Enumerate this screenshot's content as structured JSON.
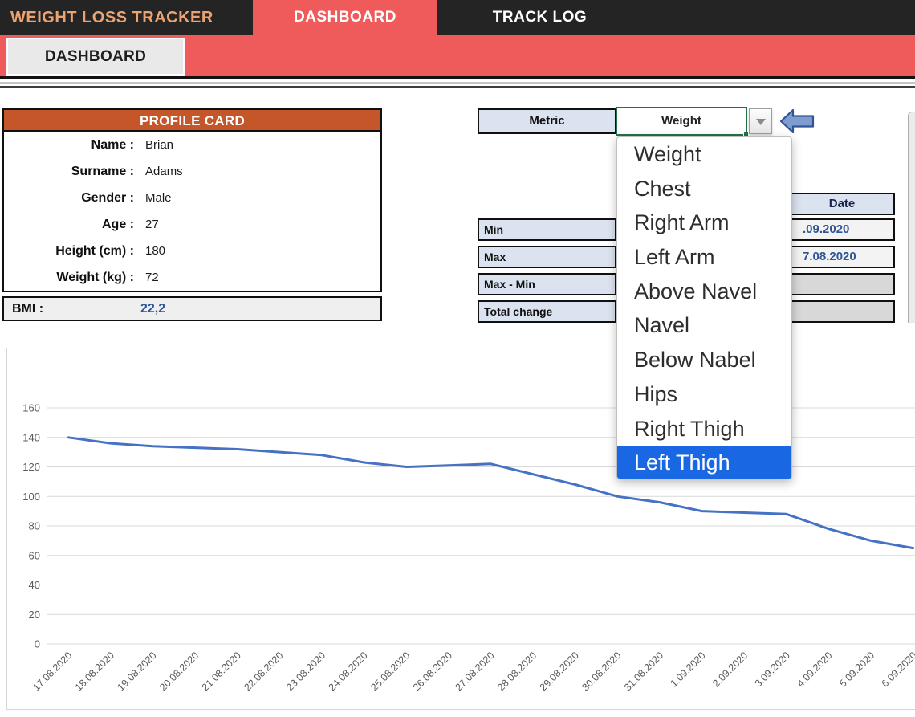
{
  "window": {
    "app_title": "WEIGHT LOSS TRACKER",
    "tabs": [
      {
        "label": "DASHBOARD",
        "active": true
      },
      {
        "label": "TRACK LOG",
        "active": false
      }
    ],
    "ribbon_button": "DASHBOARD"
  },
  "profile_card": {
    "title": "PROFILE CARD",
    "fields": [
      {
        "label": "Name :",
        "value": "Brian"
      },
      {
        "label": "Surname :",
        "value": "Adams"
      },
      {
        "label": "Gender :",
        "value": "Male"
      },
      {
        "label": "Age :",
        "value": "27"
      },
      {
        "label": "Height (cm) :",
        "value": "180"
      },
      {
        "label": "Weight (kg) :",
        "value": "72"
      }
    ],
    "bmi_label": "BMI :",
    "bmi_value": "22,2"
  },
  "metric_selector": {
    "label": "Metric",
    "selected": "Weight",
    "options": [
      "Weight",
      "Chest",
      "Right Arm",
      "Left Arm",
      "Above Navel",
      "Navel",
      "Below Nabel",
      "Hips",
      "Right Thigh",
      "Left Thigh"
    ],
    "highlighted_option": "Left Thigh"
  },
  "stats_table": {
    "date_header": "Date",
    "rows": [
      {
        "label": "Min",
        "date": ".09.2020"
      },
      {
        "label": "Max",
        "date": "7.08.2020"
      },
      {
        "label": "Max - Min",
        "date": ""
      },
      {
        "label": "Total change",
        "date": ""
      }
    ]
  },
  "colors": {
    "topbar_bg": "#242424",
    "accent_red": "#EF5B5B",
    "title_orange": "#EDA36F",
    "card_header_orange": "#C4562A",
    "cell_blue": "#DCE3F0",
    "value_blue": "#2F5597",
    "highlight_blue": "#1967E3",
    "chart_line_blue": "#4472C4",
    "selected_cell_green": "#217346",
    "empty_cell_gray": "#D8D8D8"
  },
  "chart_data": {
    "type": "line",
    "title": "",
    "xlabel": "",
    "ylabel": "",
    "categories": [
      "17.08.2020",
      "18.08.2020",
      "19.08.2020",
      "20.08.2020",
      "21.08.2020",
      "22.08.2020",
      "23.08.2020",
      "24.08.2020",
      "25.08.2020",
      "26.08.2020",
      "27.08.2020",
      "28.08.2020",
      "29.08.2020",
      "30.08.2020",
      "31.08.2020",
      "1.09.2020",
      "2.09.2020",
      "3.09.2020",
      "4.09.2020",
      "5.09.2020",
      "6.09.2020"
    ],
    "series": [
      {
        "name": "Weight",
        "values": [
          140,
          136,
          134,
          133,
          132,
          130,
          128,
          123,
          120,
          121,
          122,
          115,
          108,
          100,
          96,
          90,
          89,
          88,
          78,
          70,
          65
        ]
      }
    ],
    "ylim": [
      0,
      160
    ],
    "ytick_step": 20,
    "grid": true,
    "legend_position": "none",
    "line_color": "#4472C4",
    "gridline_color": "#D9D9D9",
    "axis_label_color": "#595959"
  }
}
